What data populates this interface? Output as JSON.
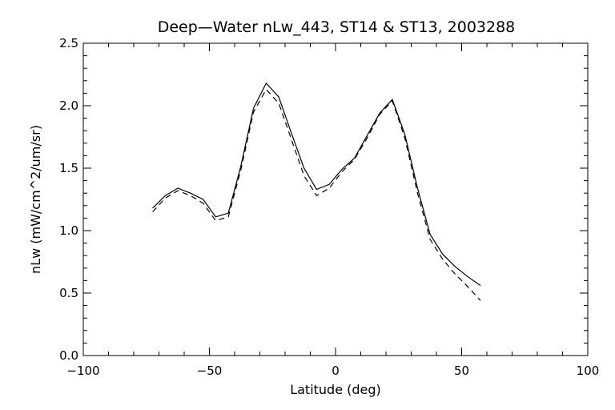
{
  "chart_data": {
    "type": "line",
    "title": "Deep—Water nLw_443, ST14 & ST13, 2003288",
    "xlabel": "Latitude (deg)",
    "ylabel": "nLw (mW/cm^2/um/sr)",
    "xlim": [
      -100,
      100
    ],
    "ylim": [
      0.0,
      2.5
    ],
    "x_ticks": [
      -100,
      -50,
      0,
      50,
      100
    ],
    "x_tick_labels": [
      "−100",
      "−50",
      "0",
      "50",
      "100"
    ],
    "y_ticks": [
      0.0,
      0.5,
      1.0,
      1.5,
      2.0,
      2.5
    ],
    "y_tick_labels": [
      "0.0",
      "0.5",
      "1.0",
      "1.5",
      "2.0",
      "2.5"
    ],
    "grid": false,
    "series": [
      {
        "style": "solid",
        "x": [
          -72.5,
          -67.5,
          -62.5,
          -57.5,
          -52.5,
          -47.5,
          -42.5,
          -37.5,
          -32.5,
          -27.5,
          -22.5,
          -17.5,
          -12.5,
          -7.5,
          -2.5,
          2.5,
          7.5,
          12.5,
          17.5,
          22.5,
          27.5,
          32.5,
          37.5,
          42.5,
          47.5,
          52.5,
          57.5
        ],
        "y": [
          1.18,
          1.28,
          1.34,
          1.3,
          1.25,
          1.11,
          1.14,
          1.52,
          1.98,
          2.18,
          2.07,
          1.78,
          1.5,
          1.33,
          1.37,
          1.49,
          1.58,
          1.76,
          1.94,
          2.05,
          1.77,
          1.34,
          0.97,
          0.81,
          0.71,
          0.63,
          0.56
        ]
      },
      {
        "style": "dashed",
        "x": [
          -72.5,
          -67.5,
          -62.5,
          -57.5,
          -52.5,
          -47.5,
          -42.5,
          -37.5,
          -32.5,
          -27.5,
          -22.5,
          -17.5,
          -12.5,
          -7.5,
          -2.5,
          2.5,
          7.5,
          12.5,
          17.5,
          22.5,
          27.5,
          32.5,
          37.5,
          42.5,
          47.5,
          52.5,
          57.5
        ],
        "y": [
          1.15,
          1.26,
          1.32,
          1.28,
          1.22,
          1.08,
          1.11,
          1.49,
          1.95,
          2.13,
          2.02,
          1.73,
          1.44,
          1.28,
          1.34,
          1.47,
          1.57,
          1.74,
          1.93,
          2.04,
          1.74,
          1.3,
          0.93,
          0.77,
          0.65,
          0.55,
          0.44
        ]
      }
    ]
  }
}
